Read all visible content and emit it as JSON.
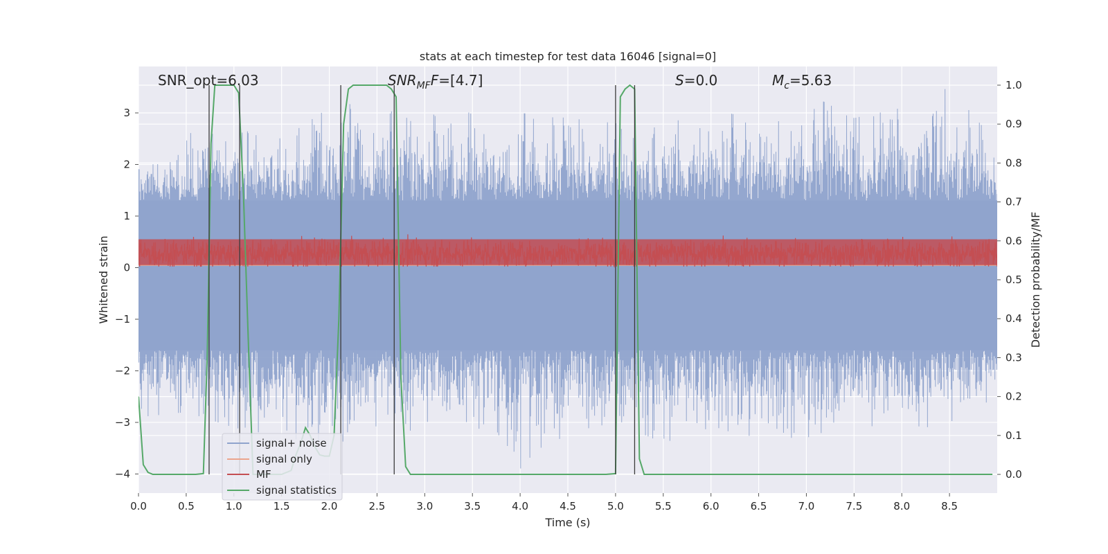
{
  "chart_data": {
    "type": "line",
    "title": "stats at each timestep for test data 16046 [signal=0]",
    "xlabel": "Time (s)",
    "ylabel": "Whitened strain",
    "ylabel_right": "Detection probability/MF",
    "xlim": [
      0,
      9.0
    ],
    "ylim": [
      -4.37,
      3.9
    ],
    "ylim_right": [
      -0.048,
      1.048
    ],
    "grid": true,
    "legend_position": "lower-left",
    "xticks": [
      "0.0",
      "0.5",
      "1.0",
      "1.5",
      "2.0",
      "2.5",
      "3.0",
      "3.5",
      "4.0",
      "4.5",
      "5.0",
      "5.5",
      "6.0",
      "6.5",
      "7.0",
      "7.5",
      "8.0",
      "8.5"
    ],
    "yticks": [
      "−4",
      "−3",
      "−2",
      "−1",
      "0",
      "1",
      "2",
      "3"
    ],
    "yticks_right": [
      "0.0",
      "0.1",
      "0.2",
      "0.3",
      "0.4",
      "0.5",
      "0.6",
      "0.7",
      "0.8",
      "0.9",
      "1.0"
    ],
    "annotations": {
      "snr_opt": "SNR_opt=6.03",
      "snr_mf_base": "SNR",
      "snr_mf_sub": "MF",
      "snr_mf_tail": "F=[4.7]",
      "s_var": "S",
      "s_val": "=0.0",
      "mc_var": "M",
      "mc_sub": "c",
      "mc_val": "=5.63"
    },
    "legend": [
      {
        "name": "signal+ noise",
        "color": "#8fa3cc"
      },
      {
        "name": "signal only",
        "color": "#eba48c"
      },
      {
        "name": "MF",
        "color": "#c44e52"
      },
      {
        "name": "signal statistics",
        "color": "#55a868"
      }
    ],
    "series": [
      {
        "name": "signal+ noise",
        "axis": "left",
        "style": "noise_band",
        "envelope_upper": [
          [
            0.0,
            2.0
          ],
          [
            0.5,
            2.6
          ],
          [
            1.0,
            2.7
          ],
          [
            1.5,
            2.5
          ],
          [
            2.0,
            3.3
          ],
          [
            2.5,
            3.0
          ],
          [
            3.0,
            3.1
          ],
          [
            3.5,
            3.0
          ],
          [
            4.0,
            3.0
          ],
          [
            4.5,
            2.9
          ],
          [
            5.0,
            2.8
          ],
          [
            5.5,
            2.7
          ],
          [
            6.0,
            3.2
          ],
          [
            6.5,
            3.0
          ],
          [
            7.0,
            3.4
          ],
          [
            7.5,
            2.9
          ],
          [
            8.0,
            3.1
          ],
          [
            8.5,
            3.5
          ],
          [
            9.0,
            2.4
          ]
        ],
        "envelope_lower": [
          [
            0.0,
            -2.9
          ],
          [
            0.5,
            -2.8
          ],
          [
            1.0,
            -3.1
          ],
          [
            1.5,
            -3.3
          ],
          [
            2.0,
            -3.4
          ],
          [
            2.5,
            -3.3
          ],
          [
            3.0,
            -3.1
          ],
          [
            3.5,
            -3.0
          ],
          [
            4.0,
            -3.9
          ],
          [
            4.5,
            -3.2
          ],
          [
            5.0,
            -3.0
          ],
          [
            5.5,
            -3.4
          ],
          [
            6.0,
            -3.1
          ],
          [
            6.5,
            -3.3
          ],
          [
            7.0,
            -3.3
          ],
          [
            7.5,
            -3.0
          ],
          [
            8.0,
            -3.2
          ],
          [
            8.5,
            -3.0
          ],
          [
            9.0,
            -2.5
          ]
        ],
        "dense_range": [
          -1.6,
          1.3
        ]
      },
      {
        "name": "signal only",
        "axis": "left",
        "x": [
          0.0,
          9.0
        ],
        "y": [
          0.05,
          0.05
        ]
      },
      {
        "name": "MF",
        "axis": "left",
        "style": "noise_band",
        "baseline": 0.27,
        "range": [
          0.02,
          1.0
        ],
        "dense_range": [
          0.05,
          0.55
        ]
      },
      {
        "name": "signal statistics",
        "axis": "right",
        "x": [
          0.0,
          0.05,
          0.1,
          0.15,
          0.2,
          0.3,
          0.4,
          0.5,
          0.6,
          0.68,
          0.72,
          0.76,
          0.8,
          0.85,
          0.9,
          0.95,
          1.0,
          1.05,
          1.1,
          1.15,
          1.2,
          1.3,
          1.4,
          1.5,
          1.6,
          1.65,
          1.7,
          1.75,
          1.8,
          1.85,
          1.9,
          1.95,
          2.0,
          2.05,
          2.1,
          2.15,
          2.2,
          2.25,
          2.3,
          2.4,
          2.5,
          2.6,
          2.65,
          2.7,
          2.75,
          2.8,
          2.85,
          2.9,
          3.0,
          3.5,
          4.0,
          4.5,
          4.9,
          5.0,
          5.05,
          5.1,
          5.15,
          5.2,
          5.25,
          5.3,
          5.35,
          5.5,
          6.0,
          6.5,
          7.0,
          7.5,
          8.0,
          8.5,
          8.95
        ],
        "y": [
          0.2,
          0.025,
          0.005,
          0.0,
          0.0,
          0.0,
          0.0,
          0.0,
          0.0,
          0.002,
          0.3,
          0.85,
          1.0,
          1.0,
          1.0,
          1.0,
          1.0,
          0.98,
          0.72,
          0.35,
          0.0,
          0.0,
          0.0,
          0.0,
          0.01,
          0.05,
          0.08,
          0.12,
          0.1,
          0.07,
          0.05,
          0.047,
          0.047,
          0.1,
          0.4,
          0.9,
          0.99,
          1.0,
          1.0,
          1.0,
          1.0,
          1.0,
          0.99,
          0.97,
          0.25,
          0.02,
          0.0,
          0.0,
          0.0,
          0.0,
          0.0,
          0.0,
          0.0,
          0.002,
          0.97,
          0.99,
          1.0,
          0.99,
          0.04,
          0.0,
          0.0,
          0.0,
          0.0,
          0.0,
          0.0,
          0.0,
          0.0,
          0.0,
          0.0
        ]
      }
    ],
    "vlines": [
      0.74,
      1.06,
      2.12,
      2.68,
      5.0,
      5.2
    ]
  }
}
